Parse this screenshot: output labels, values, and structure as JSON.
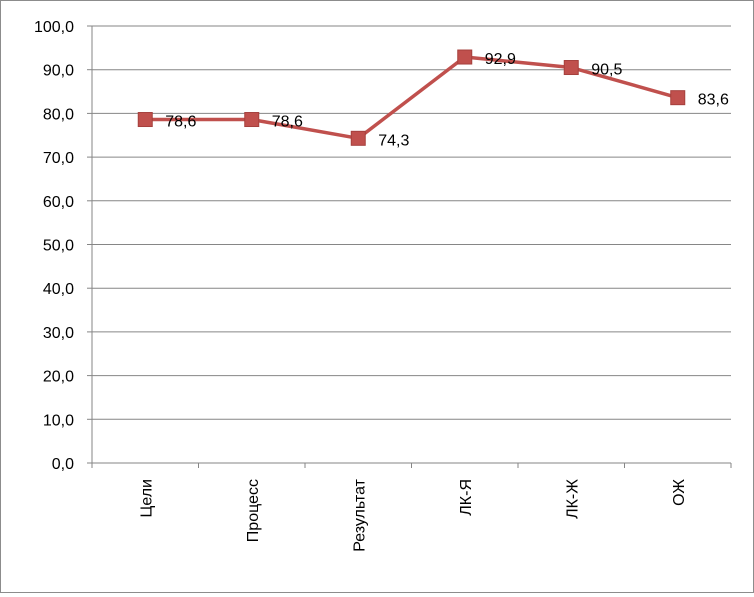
{
  "chart_data": {
    "type": "line",
    "categories": [
      "Цели",
      "Процесс",
      "Результат",
      "ЛК-Я",
      "ЛК-Ж",
      "ОЖ"
    ],
    "series": [
      {
        "values": [
          78.6,
          78.6,
          74.3,
          92.9,
          90.5,
          83.6
        ],
        "labels": [
          "78,6",
          "78,6",
          "74,3",
          "92,9",
          "90,5",
          "83,6"
        ],
        "color": "#c0504d",
        "marker": "square"
      }
    ],
    "y_tick_labels": [
      "0,0",
      "10,0",
      "20,0",
      "30,0",
      "40,0",
      "50,0",
      "60,0",
      "70,0",
      "80,0",
      "90,0",
      "100,0"
    ],
    "ylim": [
      0,
      100
    ],
    "y_step": 10,
    "grid": true,
    "legend": "none",
    "title": "",
    "xlabel": "",
    "ylabel": ""
  }
}
